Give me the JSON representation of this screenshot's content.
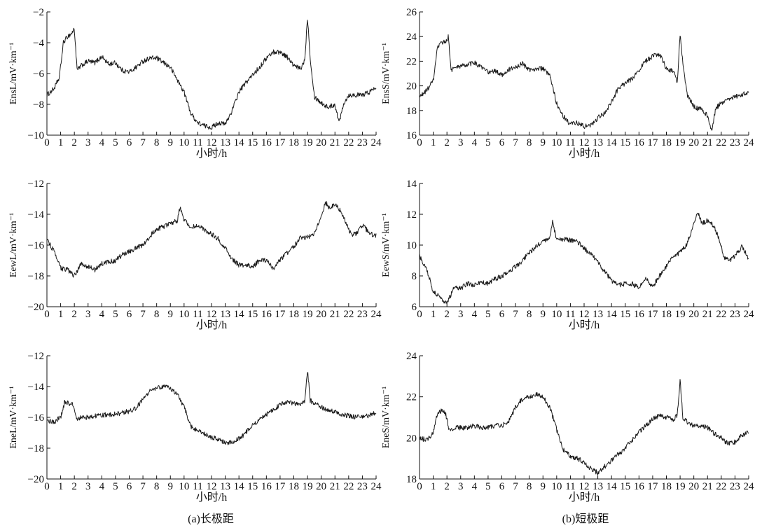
{
  "captions": {
    "a": "(a)长极距",
    "b": "(b)短极距"
  },
  "xlabel": "小时/h",
  "chart_data": [
    {
      "type": "line",
      "panel": "a",
      "row": 0,
      "ylabel": "EnsL/mV·km⁻¹",
      "ylim": [
        -10,
        -2
      ],
      "yticks": [
        -10,
        -8,
        -6,
        -4,
        -2
      ],
      "xlim": [
        0,
        24
      ],
      "xticks": [
        0,
        1,
        2,
        3,
        4,
        5,
        6,
        7,
        8,
        9,
        10,
        11,
        12,
        13,
        14,
        15,
        16,
        17,
        18,
        19,
        20,
        21,
        22,
        23,
        24
      ],
      "xlabel": "小时/h",
      "series": [
        {
          "x": [
            0,
            0.5,
            0.9,
            1.2,
            1.5,
            1.8,
            2.0,
            2.2,
            2.5,
            3,
            3.5,
            4,
            4.5,
            5,
            5.5,
            6,
            6.5,
            7,
            7.5,
            8,
            8.5,
            9,
            9.5,
            10,
            10.5,
            11,
            11.5,
            12,
            12.5,
            13,
            13.5,
            14,
            14.5,
            15,
            15.5,
            16,
            16.5,
            17,
            17.5,
            18,
            18.5,
            18.8,
            19.0,
            19.2,
            19.5,
            20,
            20.5,
            21,
            21.3,
            21.6,
            22,
            22.5,
            23,
            23.5,
            24
          ],
          "y": [
            -7.4,
            -7.0,
            -6.3,
            -4.0,
            -3.6,
            -3.4,
            -3.1,
            -5.8,
            -5.5,
            -5.2,
            -5.3,
            -4.9,
            -5.4,
            -5.3,
            -5.8,
            -5.9,
            -5.6,
            -5.2,
            -5.0,
            -5.0,
            -5.3,
            -5.6,
            -6.4,
            -7.2,
            -8.6,
            -9.2,
            -9.4,
            -9.5,
            -9.2,
            -9.3,
            -8.4,
            -7.2,
            -6.6,
            -6.1,
            -5.6,
            -5.0,
            -4.6,
            -4.6,
            -4.9,
            -5.5,
            -5.7,
            -5.1,
            -2.3,
            -5.0,
            -7.5,
            -7.9,
            -8.2,
            -8.0,
            -9.2,
            -8.0,
            -7.4,
            -7.4,
            -7.4,
            -7.2,
            -6.9
          ]
        }
      ]
    },
    {
      "type": "line",
      "panel": "b",
      "row": 0,
      "ylabel": "EnsS/mV·km⁻¹",
      "ylim": [
        16,
        26
      ],
      "yticks": [
        16,
        18,
        20,
        22,
        24,
        26
      ],
      "xlim": [
        0,
        24
      ],
      "xticks": [
        0,
        1,
        2,
        3,
        4,
        5,
        6,
        7,
        8,
        9,
        10,
        11,
        12,
        13,
        14,
        15,
        16,
        17,
        18,
        19,
        20,
        21,
        22,
        23,
        24
      ],
      "xlabel": "小时/h",
      "series": [
        {
          "x": [
            0,
            0.5,
            1.0,
            1.3,
            1.6,
            1.9,
            2.1,
            2.3,
            2.5,
            3,
            3.5,
            4,
            4.5,
            5,
            5.5,
            6,
            6.5,
            7,
            7.5,
            8,
            8.5,
            9,
            9.5,
            10,
            10.5,
            11,
            11.5,
            12,
            12.5,
            13,
            13.5,
            14,
            14.5,
            15,
            15.5,
            16,
            16.5,
            17,
            17.5,
            18,
            18.5,
            18.8,
            19.0,
            19.2,
            19.5,
            20,
            20.5,
            21,
            21.3,
            21.6,
            22,
            22.5,
            23,
            23.5,
            24
          ],
          "y": [
            19.1,
            19.6,
            20.4,
            23.0,
            23.5,
            23.6,
            24.0,
            21.3,
            21.4,
            21.6,
            21.7,
            21.9,
            21.5,
            21.1,
            21.2,
            20.9,
            21.3,
            21.5,
            21.8,
            21.3,
            21.4,
            21.4,
            20.8,
            18.6,
            17.5,
            16.9,
            17.0,
            16.7,
            16.8,
            17.4,
            17.8,
            18.7,
            19.8,
            20.2,
            20.6,
            21.3,
            22.0,
            22.4,
            22.6,
            21.4,
            21.2,
            20.3,
            24.3,
            21.8,
            19.3,
            18.3,
            18.1,
            17.6,
            16.2,
            18.2,
            18.6,
            19.0,
            19.1,
            19.3,
            19.5
          ]
        }
      ]
    },
    {
      "type": "line",
      "panel": "a",
      "row": 1,
      "ylabel": "EewL/mV·km⁻¹",
      "ylim": [
        -20,
        -12
      ],
      "yticks": [
        -20,
        -18,
        -16,
        -14,
        -12
      ],
      "xlim": [
        0,
        24
      ],
      "xticks": [
        0,
        1,
        2,
        3,
        4,
        5,
        6,
        7,
        8,
        9,
        10,
        11,
        12,
        13,
        14,
        15,
        16,
        17,
        18,
        19,
        20,
        21,
        22,
        23,
        24
      ],
      "xlabel": "小时/h",
      "series": [
        {
          "x": [
            0,
            0.5,
            1,
            1.5,
            2,
            2.5,
            3,
            3.5,
            4,
            4.5,
            5,
            5.5,
            6,
            6.5,
            7,
            7.5,
            8,
            8.5,
            9,
            9.5,
            9.7,
            10,
            10.5,
            11,
            11.5,
            12,
            12.5,
            13,
            13.5,
            14,
            14.5,
            15,
            15.5,
            16,
            16.5,
            17,
            17.5,
            18,
            18.5,
            19,
            19.5,
            20,
            20.3,
            20.6,
            21,
            21.4,
            21.8,
            22.2,
            22.6,
            23,
            23.5,
            24
          ],
          "y": [
            -15.6,
            -16.4,
            -17.5,
            -17.6,
            -18.0,
            -17.2,
            -17.4,
            -17.6,
            -17.2,
            -17.1,
            -17.0,
            -16.6,
            -16.4,
            -16.2,
            -16.0,
            -15.4,
            -15.0,
            -14.8,
            -14.6,
            -14.4,
            -13.5,
            -14.4,
            -14.8,
            -14.8,
            -15.0,
            -15.3,
            -15.6,
            -16.2,
            -16.9,
            -17.3,
            -17.3,
            -17.4,
            -17.0,
            -17.0,
            -17.5,
            -17.0,
            -16.5,
            -16.1,
            -15.5,
            -15.5,
            -15.3,
            -14.2,
            -13.2,
            -13.6,
            -13.3,
            -13.8,
            -14.5,
            -15.4,
            -15.2,
            -14.7,
            -15.2,
            -15.4
          ]
        }
      ]
    },
    {
      "type": "line",
      "panel": "b",
      "row": 1,
      "ylabel": "EewS/mV·km⁻¹",
      "ylim": [
        6,
        14
      ],
      "yticks": [
        6,
        8,
        10,
        12,
        14
      ],
      "xlim": [
        0,
        24
      ],
      "xticks": [
        0,
        1,
        2,
        3,
        4,
        5,
        6,
        7,
        8,
        9,
        10,
        11,
        12,
        13,
        14,
        15,
        16,
        17,
        18,
        19,
        20,
        21,
        22,
        23,
        24
      ],
      "xlabel": "小时/h",
      "series": [
        {
          "x": [
            0,
            0.5,
            1,
            1.5,
            2,
            2.5,
            3,
            3.5,
            4,
            4.5,
            5,
            5.5,
            6,
            6.5,
            7,
            7.5,
            8,
            8.5,
            9,
            9.5,
            9.7,
            10,
            10.5,
            11,
            11.5,
            12,
            12.5,
            13,
            13.5,
            14,
            14.5,
            15,
            15.5,
            16,
            16.5,
            17,
            17.5,
            18,
            18.5,
            19,
            19.5,
            20,
            20.3,
            20.6,
            21,
            21.4,
            21.8,
            22.2,
            22.6,
            23,
            23.5,
            24
          ],
          "y": [
            9.3,
            8.5,
            7.0,
            6.6,
            6.2,
            7.2,
            7.2,
            7.5,
            7.4,
            7.6,
            7.5,
            7.8,
            8.0,
            8.3,
            8.6,
            9.0,
            9.5,
            9.9,
            10.2,
            10.4,
            11.6,
            10.3,
            10.4,
            10.3,
            10.2,
            9.8,
            9.4,
            8.9,
            8.3,
            7.7,
            7.4,
            7.5,
            7.5,
            7.2,
            7.8,
            7.3,
            8.0,
            8.6,
            9.3,
            9.5,
            10.1,
            11.4,
            12.1,
            11.4,
            11.6,
            11.3,
            10.5,
            9.2,
            9.0,
            9.3,
            9.9,
            9.1
          ]
        }
      ]
    },
    {
      "type": "line",
      "panel": "a",
      "row": 2,
      "ylabel": "EneL/mV·km⁻¹",
      "ylim": [
        -20,
        -12
      ],
      "yticks": [
        -20,
        -18,
        -16,
        -14,
        -12
      ],
      "xlim": [
        0,
        24
      ],
      "xticks": [
        0,
        1,
        2,
        3,
        4,
        5,
        6,
        7,
        8,
        9,
        10,
        11,
        12,
        13,
        14,
        15,
        16,
        17,
        18,
        19,
        20,
        21,
        22,
        23,
        24
      ],
      "xlabel": "小时/h",
      "series": [
        {
          "x": [
            0,
            0.5,
            1,
            1.3,
            1.6,
            1.9,
            2.2,
            2.5,
            3,
            3.5,
            4,
            4.5,
            5,
            5.5,
            6,
            6.5,
            7,
            7.5,
            8,
            8.5,
            9,
            9.5,
            10,
            10.5,
            11,
            11.5,
            12,
            12.5,
            13,
            13.5,
            14,
            14.5,
            15,
            15.5,
            16,
            16.5,
            17,
            17.5,
            18,
            18.5,
            18.8,
            19.0,
            19.2,
            19.5,
            20,
            20.5,
            21,
            21.5,
            22,
            22.5,
            23,
            23.5,
            24
          ],
          "y": [
            -16.2,
            -16.3,
            -16.0,
            -15.0,
            -15.1,
            -15.2,
            -16.1,
            -16.0,
            -16.0,
            -15.9,
            -15.9,
            -15.8,
            -15.8,
            -15.7,
            -15.6,
            -15.4,
            -14.8,
            -14.3,
            -14.1,
            -14.0,
            -14.1,
            -14.5,
            -15.3,
            -16.6,
            -16.9,
            -17.1,
            -17.3,
            -17.4,
            -17.7,
            -17.6,
            -17.4,
            -17.0,
            -16.5,
            -16.2,
            -15.8,
            -15.5,
            -15.2,
            -15.0,
            -15.1,
            -15.2,
            -14.9,
            -12.9,
            -14.9,
            -15.1,
            -15.3,
            -15.6,
            -15.6,
            -15.8,
            -15.9,
            -16.0,
            -15.9,
            -15.9,
            -15.7
          ]
        }
      ]
    },
    {
      "type": "line",
      "panel": "b",
      "row": 2,
      "ylabel": "EneS/mV·km⁻¹",
      "ylim": [
        18,
        24
      ],
      "yticks": [
        18,
        20,
        22,
        24
      ],
      "xlim": [
        0,
        24
      ],
      "xticks": [
        0,
        1,
        2,
        3,
        4,
        5,
        6,
        7,
        8,
        9,
        10,
        11,
        12,
        13,
        14,
        15,
        16,
        17,
        18,
        19,
        20,
        21,
        22,
        23,
        24
      ],
      "xlabel": "小时/h",
      "series": [
        {
          "x": [
            0,
            0.5,
            1,
            1.3,
            1.6,
            1.9,
            2.2,
            2.5,
            3,
            3.5,
            4,
            4.5,
            5,
            5.5,
            6,
            6.5,
            7,
            7.5,
            8,
            8.5,
            9,
            9.5,
            10,
            10.5,
            11,
            11.5,
            12,
            12.5,
            13,
            13.5,
            14,
            14.5,
            15,
            15.5,
            16,
            16.5,
            17,
            17.5,
            18,
            18.5,
            18.8,
            19.0,
            19.2,
            19.5,
            20,
            20.5,
            21,
            21.5,
            22,
            22.5,
            23,
            23.5,
            24
          ],
          "y": [
            20.0,
            19.9,
            20.2,
            21.2,
            21.3,
            21.2,
            20.3,
            20.5,
            20.5,
            20.5,
            20.6,
            20.5,
            20.5,
            20.6,
            20.6,
            20.8,
            21.5,
            21.9,
            22.0,
            22.1,
            22.0,
            21.5,
            20.4,
            19.4,
            19.1,
            19.0,
            18.8,
            18.5,
            18.3,
            18.6,
            18.9,
            19.2,
            19.5,
            19.9,
            20.3,
            20.6,
            20.9,
            21.1,
            21.0,
            20.9,
            21.1,
            22.9,
            20.9,
            20.8,
            20.6,
            20.6,
            20.5,
            20.2,
            20.0,
            19.7,
            19.8,
            20.1,
            20.3
          ]
        }
      ]
    }
  ]
}
